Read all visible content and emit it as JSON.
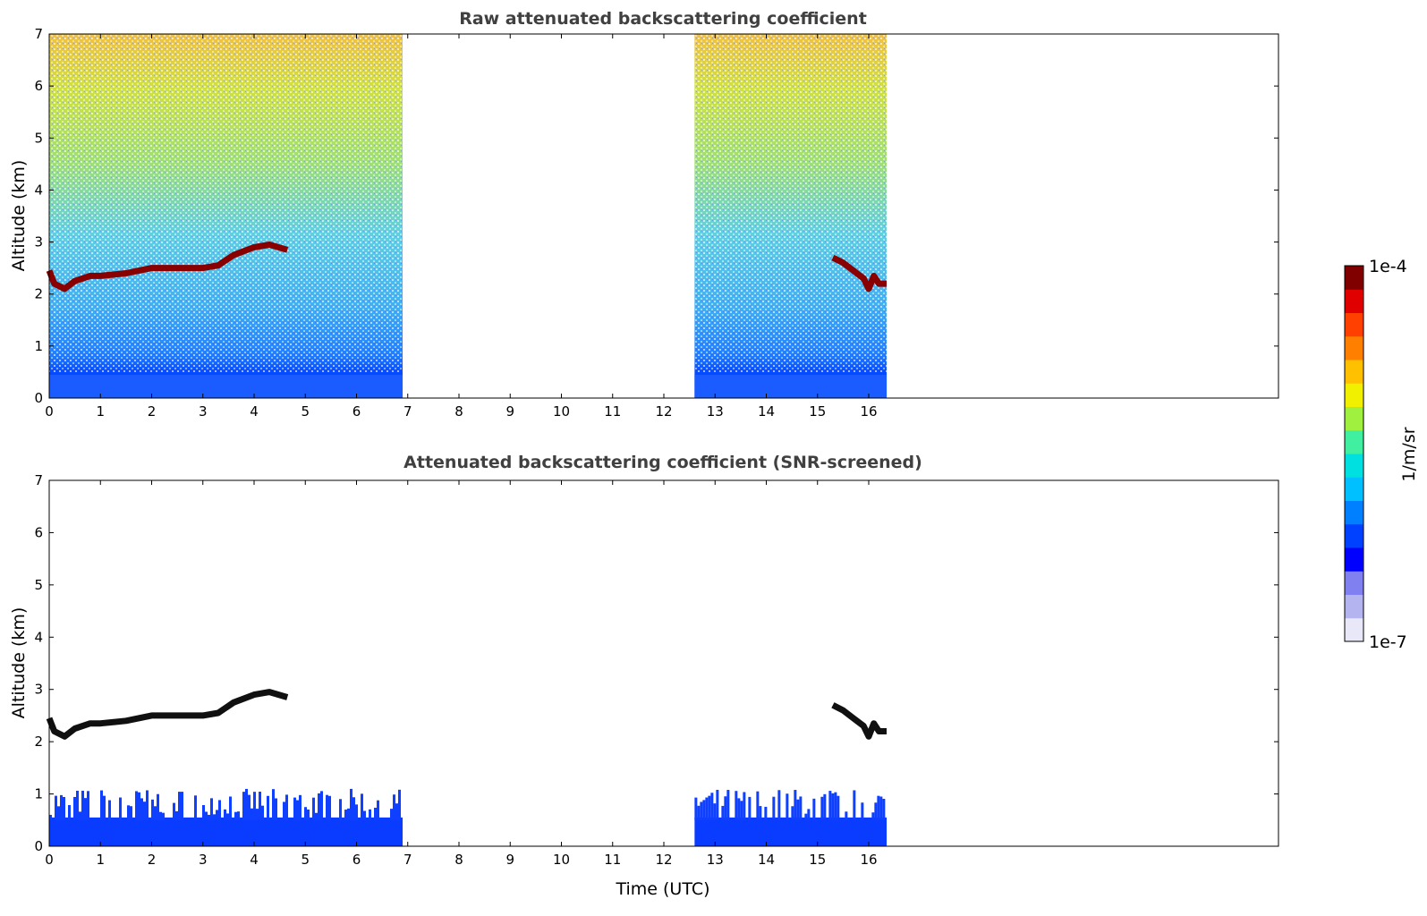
{
  "chart_data": [
    {
      "type": "heatmap",
      "title": "Raw attenuated backscattering coefficient",
      "xlabel": "",
      "ylabel": "Altitude (km)",
      "xlim": [
        0,
        24
      ],
      "ylim": [
        0,
        7
      ],
      "xticks": [
        0,
        1,
        2,
        3,
        4,
        5,
        6,
        7,
        8,
        9,
        10,
        11,
        12,
        13,
        14,
        15,
        16
      ],
      "yticks": [
        0,
        1,
        2,
        3,
        4,
        5,
        6,
        7
      ],
      "data_segments": [
        {
          "start": 0.0,
          "end": 6.9
        },
        {
          "start": 12.6,
          "end": 16.35
        }
      ],
      "cloud_layers": [
        {
          "x": [
            0.0,
            0.1,
            0.3,
            0.5,
            0.8,
            1.0,
            1.5,
            2.0,
            2.5,
            3.0,
            3.3,
            3.6,
            4.0,
            4.3,
            4.65
          ],
          "y": [
            2.45,
            2.2,
            2.1,
            2.25,
            2.35,
            2.35,
            2.4,
            2.5,
            2.5,
            2.5,
            2.55,
            2.75,
            2.9,
            2.95,
            2.85
          ]
        },
        {
          "x": [
            15.3,
            15.5,
            15.7,
            15.9,
            16.0,
            16.1,
            16.2,
            16.35
          ],
          "y": [
            2.7,
            2.6,
            2.45,
            2.3,
            2.1,
            2.35,
            2.2,
            2.2
          ]
        }
      ]
    },
    {
      "type": "heatmap",
      "title": "Attenuated backscattering coefficient (SNR-screened)",
      "xlabel": "Time (UTC)",
      "ylabel": "Altitude (km)",
      "xlim": [
        0,
        24
      ],
      "ylim": [
        0,
        7
      ],
      "xticks": [
        0,
        1,
        2,
        3,
        4,
        5,
        6,
        7,
        8,
        9,
        10,
        11,
        12,
        13,
        14,
        15,
        16
      ],
      "yticks": [
        0,
        1,
        2,
        3,
        4,
        5,
        6,
        7
      ],
      "data_segments": [
        {
          "start": 0.0,
          "end": 6.9
        },
        {
          "start": 12.6,
          "end": 16.35
        }
      ],
      "cloud_layers": [
        {
          "x": [
            0.0,
            0.1,
            0.3,
            0.5,
            0.8,
            1.0,
            1.5,
            2.0,
            2.5,
            3.0,
            3.3,
            3.6,
            4.0,
            4.3,
            4.65
          ],
          "y": [
            2.45,
            2.2,
            2.1,
            2.25,
            2.35,
            2.35,
            2.4,
            2.5,
            2.5,
            2.5,
            2.55,
            2.75,
            2.9,
            2.95,
            2.85
          ]
        },
        {
          "x": [
            15.3,
            15.5,
            15.7,
            15.9,
            16.0,
            16.1,
            16.2,
            16.35
          ],
          "y": [
            2.7,
            2.6,
            2.45,
            2.3,
            2.1,
            2.35,
            2.2,
            2.2
          ]
        }
      ]
    }
  ],
  "colorbar": {
    "min_label": "1e-7",
    "max_label": "1e-4",
    "unit_label": "1/m/sr",
    "scale": "log",
    "colors": [
      "#e8e8f8",
      "#b4b4f0",
      "#8080f0",
      "#0000ff",
      "#0040ff",
      "#0080ff",
      "#00c0ff",
      "#00e0e0",
      "#40f0a0",
      "#a0f040",
      "#f0f000",
      "#ffc000",
      "#ff8000",
      "#ff4000",
      "#e00000",
      "#800000"
    ]
  }
}
